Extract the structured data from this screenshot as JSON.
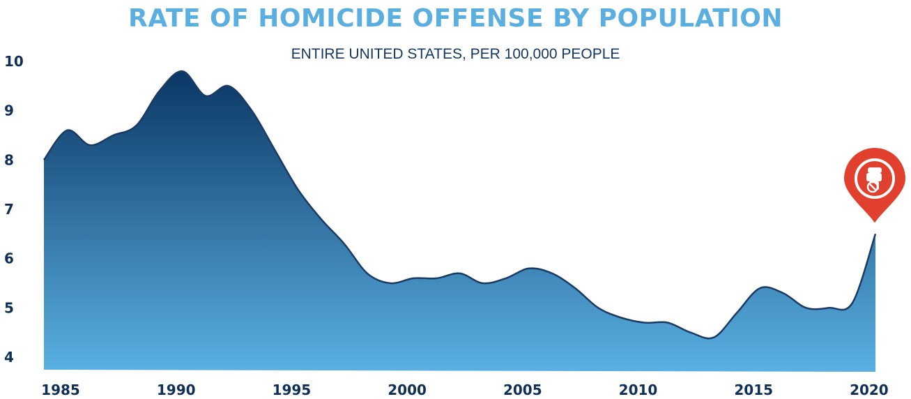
{
  "chart_data": {
    "type": "area",
    "title": "RATE OF HOMICIDE OFFENSE BY POPULATION",
    "subtitle": "ENTIRE UNITED STATES, PER 100,000 PEOPLE",
    "xlabel": "",
    "ylabel": "",
    "x": [
      1985,
      1986,
      1987,
      1988,
      1989,
      1990,
      1991,
      1992,
      1993,
      1994,
      1995,
      1996,
      1997,
      1998,
      1999,
      2000,
      2001,
      2002,
      2003,
      2004,
      2005,
      2006,
      2007,
      2008,
      2009,
      2010,
      2011,
      2012,
      2013,
      2014,
      2015,
      2016,
      2017,
      2018,
      2019,
      2020,
      2021
    ],
    "values": [
      8.0,
      8.6,
      8.3,
      8.5,
      8.7,
      9.4,
      9.8,
      9.3,
      9.5,
      9.0,
      8.2,
      7.4,
      6.8,
      6.3,
      5.7,
      5.5,
      5.6,
      5.6,
      5.7,
      5.5,
      5.6,
      5.8,
      5.7,
      5.4,
      5.0,
      4.8,
      4.7,
      4.7,
      4.5,
      4.4,
      4.9,
      5.4,
      5.3,
      5.0,
      5.0,
      5.1,
      6.5
    ],
    "xticks": [
      "1985",
      "1990",
      "1995",
      "2000",
      "2005",
      "2010",
      "2015",
      "2020"
    ],
    "xtick_values": [
      1985,
      1990,
      1995,
      2000,
      2005,
      2010,
      2015,
      2020
    ],
    "yticks": [
      "4",
      "5",
      "6",
      "7",
      "8",
      "9",
      "10"
    ],
    "ytick_values": [
      4,
      5,
      6,
      7,
      8,
      9,
      10
    ],
    "xlim": [
      1985,
      2021
    ],
    "ylim": [
      4,
      10
    ],
    "grid": false,
    "legend": "none",
    "colors": {
      "area_top": "#0b3764",
      "area_bottom": "#5ab0e3",
      "line": "#1b3a63",
      "marker": "#e2402f"
    }
  },
  "marker": {
    "icon": "raised-fist-icon",
    "year": 2021
  }
}
